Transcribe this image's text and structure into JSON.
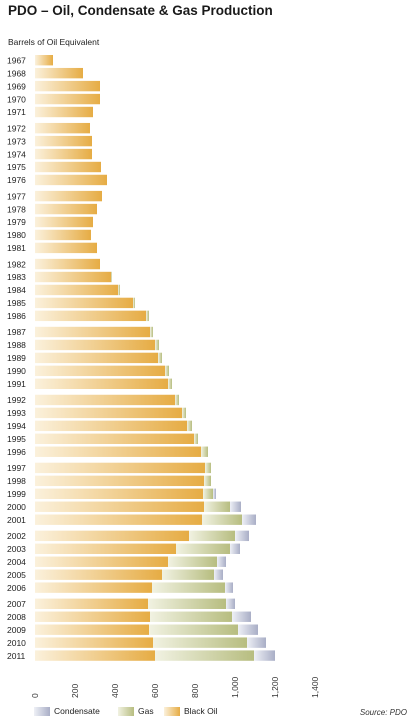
{
  "chart_data": {
    "type": "bar",
    "orientation": "horizontal",
    "stacked": true,
    "title": "PDO – Oil, Condensate & Gas Production",
    "subtitle": "Barrels of Oil Equivalent",
    "source": "Source: PDO",
    "xlim": [
      0,
      1400
    ],
    "xticks": [
      "0",
      "200",
      "400",
      "600",
      "800",
      "1,000",
      "1,200",
      "1,400"
    ],
    "categories": [
      "1967",
      "1968",
      "1969",
      "1970",
      "1971",
      "1972",
      "1973",
      "1974",
      "1975",
      "1976",
      "1977",
      "1978",
      "1979",
      "1980",
      "1981",
      "1982",
      "1983",
      "1984",
      "1985",
      "1986",
      "1987",
      "1988",
      "1989",
      "1990",
      "1991",
      "1992",
      "1993",
      "1994",
      "1995",
      "1996",
      "1997",
      "1998",
      "1999",
      "2000",
      "2001",
      "2002",
      "2003",
      "2004",
      "2005",
      "2006",
      "2007",
      "2008",
      "2009",
      "2010",
      "2011"
    ],
    "series": [
      {
        "name": "Black Oil",
        "color": "#e8b04a",
        "values": [
          90,
          240,
          325,
          325,
          290,
          275,
          285,
          285,
          330,
          360,
          335,
          310,
          290,
          280,
          310,
          325,
          380,
          415,
          490,
          555,
          575,
          600,
          615,
          650,
          665,
          700,
          735,
          760,
          795,
          830,
          850,
          845,
          840,
          845,
          835,
          770,
          705,
          665,
          635,
          585,
          565,
          575,
          570,
          590,
          600
        ]
      },
      {
        "name": "Gas",
        "color": "#bcc28a",
        "values": [
          0,
          0,
          0,
          0,
          0,
          0,
          0,
          0,
          0,
          0,
          0,
          0,
          0,
          0,
          0,
          0,
          5,
          10,
          10,
          15,
          15,
          20,
          20,
          20,
          20,
          20,
          20,
          25,
          20,
          35,
          30,
          35,
          50,
          130,
          200,
          230,
          270,
          245,
          260,
          365,
          390,
          410,
          445,
          470,
          495
        ]
      },
      {
        "name": "Condensate",
        "color": "#b5b9cc",
        "values": [
          0,
          0,
          0,
          0,
          0,
          0,
          0,
          0,
          0,
          0,
          0,
          0,
          0,
          0,
          0,
          0,
          0,
          0,
          0,
          0,
          0,
          0,
          0,
          0,
          0,
          0,
          0,
          0,
          0,
          0,
          0,
          0,
          15,
          55,
          70,
          70,
          50,
          45,
          45,
          40,
          45,
          95,
          100,
          95,
          105
        ]
      }
    ],
    "legend_order": [
      "Condensate",
      "Gas",
      "Black Oil"
    ],
    "legend_placement": "bottom-left",
    "grid": false
  }
}
